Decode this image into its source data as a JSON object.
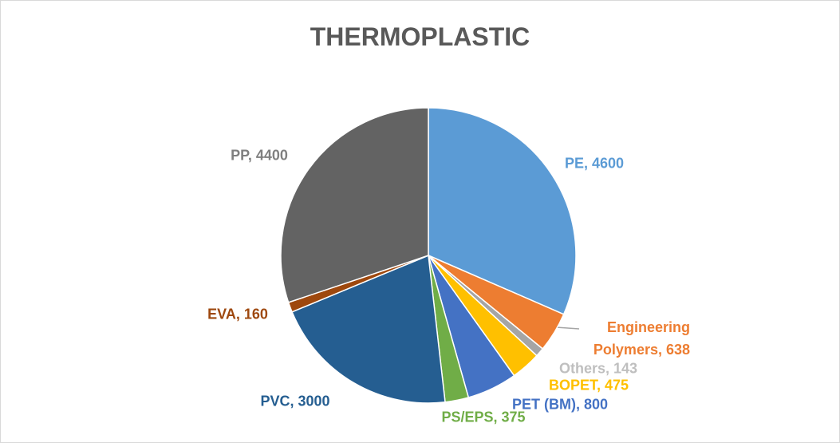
{
  "chart_data": {
    "type": "pie",
    "title": "THERMOPLASTIC",
    "values": [
      4600,
      638,
      143,
      475,
      800,
      375,
      3000,
      160,
      4400
    ],
    "value_labels": [
      "PE, 4600",
      "Engineering Polymers, 638",
      "Others, 143",
      "BOPET, 475",
      "PET (BM), 800",
      "PS/EPS, 375",
      "PVC, 3000",
      "EVA, 160",
      "PP, 4400"
    ],
    "colors": [
      "#5b9bd5",
      "#ed7d31",
      "#a5a5a5",
      "#ffc000",
      "#4472c4",
      "#70ad47",
      "#255e91",
      "#9e480e",
      "#636363"
    ]
  }
}
